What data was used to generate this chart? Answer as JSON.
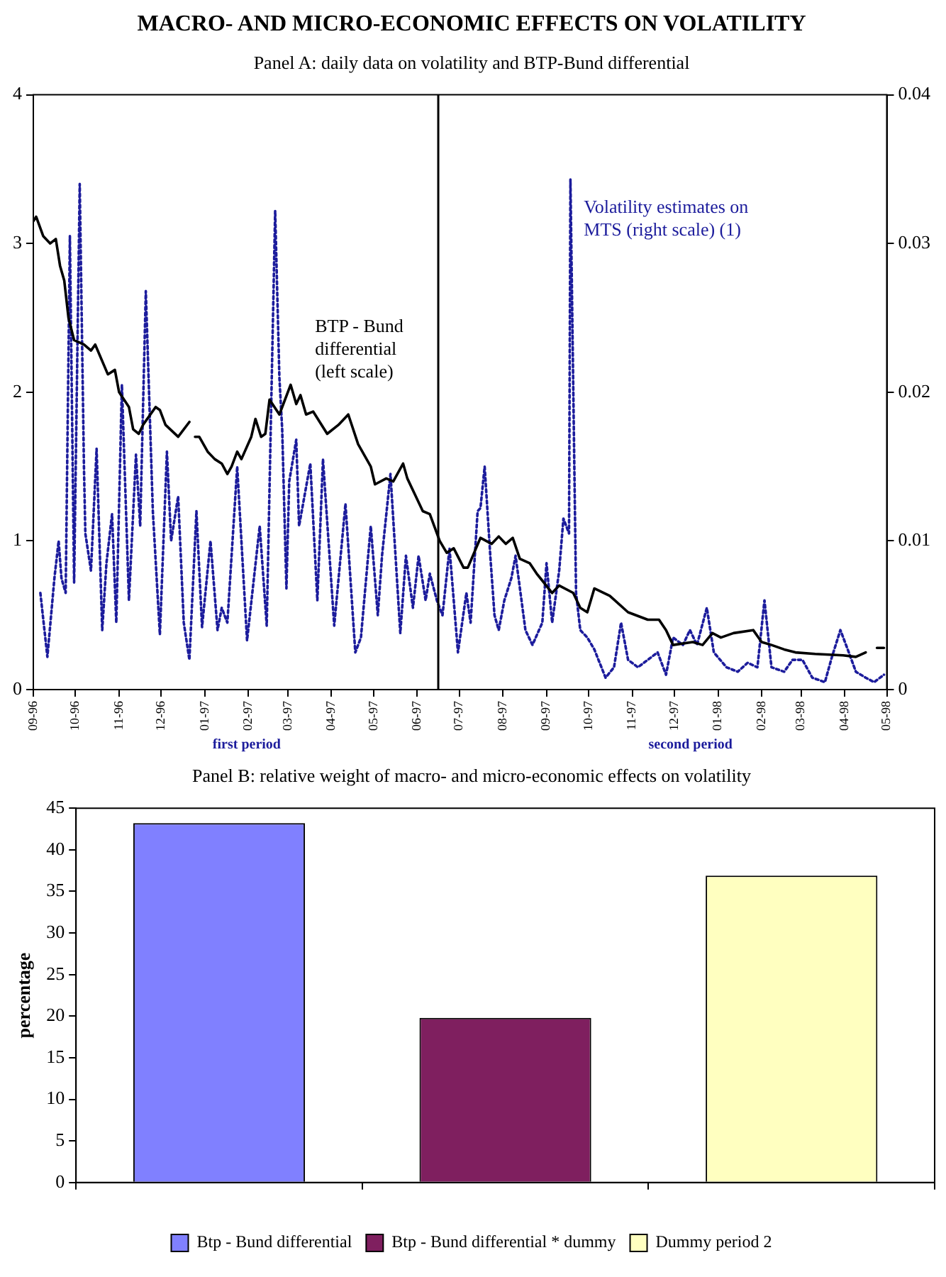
{
  "chart_data": [
    {
      "type": "line",
      "title": "MACRO- AND MICRO-ECONOMIC EFFECTS ON VOLATILITY",
      "subtitle": "Panel A: daily data on volatility and BTP-Bund differential",
      "xlim": [
        "1996-09-01",
        "1998-05-01"
      ],
      "xticks": [
        {
          "value": "1996-09-01",
          "label": "09-96"
        },
        {
          "value": "1996-10-01",
          "label": "10-96"
        },
        {
          "value": "1996-11-01",
          "label": "11-96"
        },
        {
          "value": "1996-12-01",
          "label": "12-96"
        },
        {
          "value": "1997-01-01",
          "label": "01-97"
        },
        {
          "value": "1997-02-01",
          "label": "02-97"
        },
        {
          "value": "1997-03-01",
          "label": "03-97"
        },
        {
          "value": "1997-04-01",
          "label": "04-97"
        },
        {
          "value": "1997-05-01",
          "label": "05-97"
        },
        {
          "value": "1997-06-01",
          "label": "06-97"
        },
        {
          "value": "1997-07-01",
          "label": "07-97"
        },
        {
          "value": "1997-08-01",
          "label": "08-97"
        },
        {
          "value": "1997-09-01",
          "label": "09-97"
        },
        {
          "value": "1997-10-01",
          "label": "10-97"
        },
        {
          "value": "1997-11-01",
          "label": "11-97"
        },
        {
          "value": "1997-12-01",
          "label": "12-97"
        },
        {
          "value": "1998-01-01",
          "label": "01-98"
        },
        {
          "value": "1998-02-01",
          "label": "02-98"
        },
        {
          "value": "1998-03-01",
          "label": "03-98"
        },
        {
          "value": "1998-04-01",
          "label": "04-98"
        },
        {
          "value": "1998-05-01",
          "label": "05-98"
        }
      ],
      "ylim": [
        0,
        4
      ],
      "yticks": [
        0,
        1,
        2,
        3,
        4
      ],
      "y2lim": [
        0,
        0.04
      ],
      "y2ticks": [
        0,
        0.01,
        0.02,
        0.03,
        0.04
      ],
      "ref_lines": [
        {
          "axis": "x",
          "value": "1997-06-16",
          "color": "#000000"
        }
      ],
      "annotations": [
        "first period",
        "second period"
      ],
      "series": [
        {
          "name": "BTP - Bund differential (left scale)",
          "color": "#000000",
          "x": [
            "1996-09-01",
            "1996-09-03",
            "1996-09-08",
            "1996-09-13",
            "1996-09-17",
            "1996-09-20",
            "1996-09-23",
            "1996-09-26",
            "1996-09-30",
            "1996-10-07",
            "1996-10-12",
            "1996-10-15",
            "1996-10-24",
            "1996-10-29",
            "1996-11-01",
            "1996-11-08",
            "1996-11-11",
            "1996-11-15",
            "1996-11-18",
            "1996-11-27",
            "1996-11-30",
            "1996-12-04",
            "1996-12-13",
            "1996-12-21",
            "1996-12-23",
            "1996-12-25",
            "1996-12-28",
            "1997-01-03",
            "1997-01-08",
            "1997-01-13",
            "1997-01-17",
            "1997-01-20",
            "1997-01-24",
            "1997-01-27",
            "1997-02-03",
            "1997-02-06",
            "1997-02-10",
            "1997-02-13",
            "1997-02-16",
            "1997-02-23",
            "1997-03-03",
            "1997-03-07",
            "1997-03-10",
            "1997-03-14",
            "1997-03-19",
            "1997-03-29",
            "1997-04-06",
            "1997-04-13",
            "1997-04-20",
            "1997-04-29",
            "1997-05-02",
            "1997-05-10",
            "1997-05-15",
            "1997-05-22",
            "1997-05-25",
            "1997-05-31",
            "1997-06-05",
            "1997-06-10",
            "1997-06-17",
            "1997-06-22",
            "1997-06-27",
            "1997-07-04",
            "1997-07-07",
            "1997-07-16",
            "1997-07-24",
            "1997-07-29",
            "1997-08-03",
            "1997-08-08",
            "1997-08-13",
            "1997-08-20",
            "1997-08-25",
            "1997-09-05",
            "1997-09-10",
            "1997-09-20",
            "1997-09-25",
            "1997-09-30",
            "1997-10-05",
            "1997-10-16",
            "1997-10-29",
            "1997-11-12",
            "1997-11-20",
            "1997-11-25",
            "1997-11-30",
            "1997-12-14",
            "1997-12-21",
            "1997-12-28",
            "1998-01-03",
            "1998-01-12",
            "1998-01-26",
            "1998-02-01",
            "1998-02-08",
            "1998-02-17",
            "1998-02-25",
            "1998-03-11",
            "1998-03-31",
            "1998-04-09",
            "1998-04-16",
            "1998-04-20",
            "1998-04-24",
            "1998-04-29"
          ],
          "values": [
            3.15,
            3.18,
            3.05,
            3.0,
            3.03,
            2.85,
            2.75,
            2.5,
            2.35,
            2.32,
            2.28,
            2.32,
            2.12,
            2.15,
            2.0,
            1.9,
            1.75,
            1.72,
            1.78,
            1.9,
            1.88,
            1.78,
            1.7,
            1.8,
            null,
            1.7,
            1.7,
            1.6,
            1.55,
            1.52,
            1.45,
            1.5,
            1.6,
            1.55,
            1.7,
            1.82,
            1.7,
            1.72,
            1.95,
            1.85,
            2.05,
            1.92,
            1.98,
            1.85,
            1.87,
            1.72,
            1.78,
            1.85,
            1.65,
            1.5,
            1.38,
            1.42,
            1.4,
            1.52,
            1.42,
            1.3,
            1.2,
            1.18,
            1.0,
            0.92,
            0.95,
            0.82,
            0.82,
            1.02,
            0.98,
            1.03,
            0.98,
            1.02,
            0.88,
            0.85,
            0.78,
            0.65,
            0.7,
            0.65,
            0.55,
            0.52,
            0.68,
            0.63,
            0.52,
            0.47,
            0.47,
            0.4,
            0.3,
            0.32,
            0.3,
            0.38,
            0.35,
            0.38,
            0.4,
            0.32,
            0.3,
            0.27,
            0.25,
            0.24,
            0.23,
            0.22,
            0.25,
            null,
            0.28,
            0.28
          ]
        },
        {
          "name": "Volatility estimates on MTS (right scale) (1)",
          "color": "#1c1c9c",
          "axis": "y2",
          "line_style": "dotted",
          "x": [
            "1996-09-06",
            "1996-09-11",
            "1996-09-16",
            "1996-09-19",
            "1996-09-21",
            "1996-09-24",
            "1996-09-27",
            "1996-09-30",
            "1996-10-04",
            "1996-10-07",
            "1996-10-08",
            "1996-10-12",
            "1996-10-16",
            "1996-10-20",
            "1996-10-23",
            "1996-10-27",
            "1996-10-30",
            "1996-11-03",
            "1996-11-08",
            "1996-11-13",
            "1996-11-16",
            "1996-11-20",
            "1996-11-25",
            "1996-11-30",
            "1996-12-05",
            "1996-12-08",
            "1996-12-13",
            "1996-12-17",
            "1996-12-21",
            "1996-12-26",
            "1996-12-30",
            "1997-01-05",
            "1997-01-10",
            "1997-01-13",
            "1997-01-17",
            "1997-01-24",
            "1997-01-31",
            "1997-02-09",
            "1997-02-14",
            "1997-02-20",
            "1997-02-23",
            "1997-02-25",
            "1997-02-28",
            "1997-03-02",
            "1997-03-07",
            "1997-03-09",
            "1997-03-17",
            "1997-03-22",
            "1997-03-26",
            "1997-04-03",
            "1997-04-11",
            "1997-04-18",
            "1997-04-22",
            "1997-04-29",
            "1997-05-04",
            "1997-05-07",
            "1997-05-13",
            "1997-05-20",
            "1997-05-24",
            "1997-05-29",
            "1997-06-02",
            "1997-06-07",
            "1997-06-10",
            "1997-06-15",
            "1997-06-19",
            "1997-06-24",
            "1997-06-30",
            "1997-07-06",
            "1997-07-09",
            "1997-07-14",
            "1997-07-16",
            "1997-07-19",
            "1997-07-23",
            "1997-07-26",
            "1997-07-29",
            "1997-08-02",
            "1997-08-07",
            "1997-08-10",
            "1997-08-17",
            "1997-08-22",
            "1997-08-29",
            "1997-09-01",
            "1997-09-05",
            "1997-09-10",
            "1997-09-13",
            "1997-09-17",
            "1997-09-18",
            "1997-09-22",
            "1997-09-25",
            "1997-09-30",
            "1997-10-05",
            "1997-10-13",
            "1997-10-19",
            "1997-10-24",
            "1997-10-29",
            "1997-11-05",
            "1997-11-12",
            "1997-11-19",
            "1997-11-25",
            "1997-11-30",
            "1997-12-07",
            "1997-12-12",
            "1997-12-17",
            "1997-12-24",
            "1997-12-29",
            "1998-01-07",
            "1998-01-15",
            "1998-01-22",
            "1998-01-29",
            "1998-02-03",
            "1998-02-08",
            "1998-02-17",
            "1998-02-23",
            "1998-03-02",
            "1998-03-09",
            "1998-03-18",
            "1998-03-23",
            "1998-03-29",
            "1998-04-04",
            "1998-04-09",
            "1998-04-16",
            "1998-04-22",
            "1998-04-29"
          ],
          "values": [
            0.0065,
            0.0022,
            0.0075,
            0.01,
            0.0075,
            0.0065,
            0.0305,
            0.0072,
            0.034,
            0.015,
            0.0105,
            0.008,
            0.0162,
            0.004,
            0.0085,
            0.0118,
            0.0045,
            0.0205,
            0.006,
            0.0158,
            0.011,
            0.0268,
            0.012,
            0.0037,
            0.016,
            0.01,
            0.013,
            0.0045,
            0.002,
            0.012,
            0.0042,
            0.01,
            0.004,
            0.0055,
            0.0045,
            0.015,
            0.0033,
            0.011,
            0.0043,
            0.0322,
            0.021,
            0.0175,
            0.0068,
            0.014,
            0.0168,
            0.011,
            0.0152,
            0.006,
            0.0155,
            0.0043,
            0.0125,
            0.0025,
            0.0035,
            0.011,
            0.005,
            0.009,
            0.0145,
            0.0038,
            0.009,
            0.0055,
            0.009,
            0.006,
            0.0078,
            0.006,
            0.005,
            0.0095,
            0.0025,
            0.0065,
            0.0045,
            0.012,
            0.0122,
            0.015,
            0.009,
            0.005,
            0.004,
            0.006,
            0.0075,
            0.009,
            0.004,
            0.003,
            0.0045,
            0.0085,
            0.0045,
            0.008,
            0.0115,
            0.0105,
            0.0343,
            0.0065,
            0.004,
            0.0035,
            0.0027,
            0.0008,
            0.0015,
            0.0045,
            0.002,
            0.0015,
            0.002,
            0.0025,
            0.001,
            0.0035,
            0.003,
            0.004,
            0.003,
            0.0055,
            0.0025,
            0.0015,
            0.0012,
            0.0018,
            0.0015,
            0.006,
            0.0015,
            0.0012,
            0.002,
            0.002,
            0.0008,
            0.0005,
            0.0022,
            0.004,
            0.0025,
            0.0012,
            0.0008,
            0.0005,
            0.001
          ]
        }
      ]
    },
    {
      "type": "bar",
      "title": "Panel B: relative weight of macro- and micro-economic effects on volatility",
      "ylabel": "percentage",
      "categories": [
        null,
        null,
        null
      ],
      "ylim": [
        0,
        45
      ],
      "yticks": [
        0,
        5,
        10,
        15,
        20,
        25,
        30,
        35,
        40,
        45
      ],
      "legend": "bottom",
      "series": [
        {
          "name": "Btp - Bund differential",
          "color": "#8080ff",
          "values": [
            43.2,
            null,
            null
          ]
        },
        {
          "name": "Btp - Bund differential * dummy",
          "color": "#7f1f5f",
          "values": [
            null,
            19.8,
            null
          ]
        },
        {
          "name": "Dummy period 2",
          "color": "#ffffc0",
          "values": [
            null,
            null,
            36.9
          ]
        }
      ]
    }
  ]
}
